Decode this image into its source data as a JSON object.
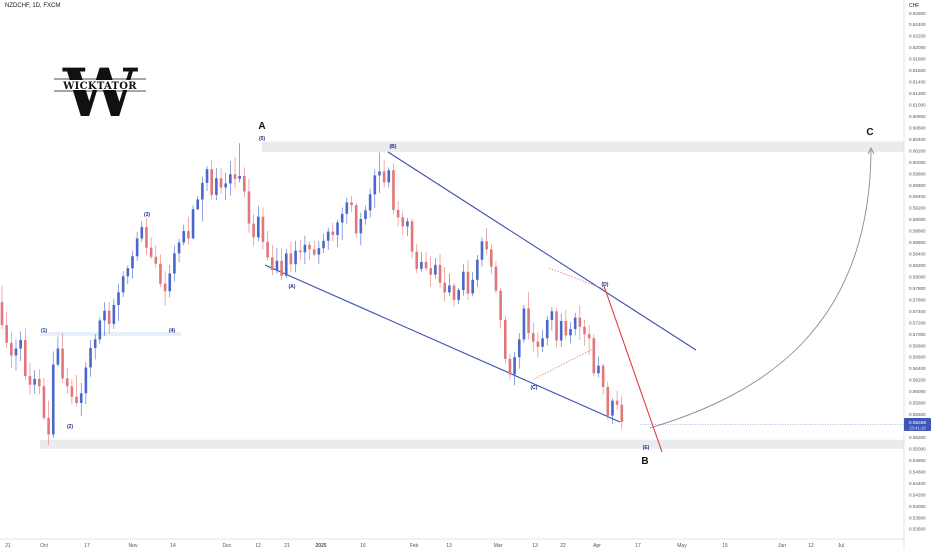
{
  "symbol_line": "NZDCHF, 1D, FXCM",
  "currency": "CHF",
  "logo": {
    "text": "WICKTATOR",
    "letter": "W"
  },
  "last_price": "0.55468",
  "countdown": "23:41:18",
  "colors": {
    "up": "#4a67c9",
    "down": "#e0777a",
    "channel": "#3d4fb5",
    "trend_red": "#e03c3c",
    "zone": "#e8eaed",
    "projection": "#8a8a8a",
    "price_tag": "#3f56b9"
  },
  "chart_data": {
    "type": "candlestick",
    "title": "NZDCHF, 1D, FXCM",
    "y_axis_label": "CHF",
    "ylim": [
      0.5355,
      0.6276
    ],
    "price_ticks": [
      "0.62600",
      "0.62400",
      "0.62200",
      "0.62000",
      "0.61800",
      "0.61600",
      "0.61400",
      "0.61200",
      "0.61000",
      "0.60800",
      "0.60600",
      "0.60400",
      "0.60200",
      "0.60000",
      "0.59800",
      "0.59600",
      "0.59400",
      "0.59200",
      "0.59000",
      "0.58800",
      "0.58600",
      "0.58400",
      "0.58200",
      "0.58000",
      "0.57800",
      "0.57600",
      "0.57400",
      "0.57200",
      "0.57000",
      "0.56800",
      "0.56600",
      "0.56400",
      "0.56200",
      "0.56000",
      "0.55800",
      "0.55600",
      "0.55400",
      "0.55200",
      "0.55000",
      "0.54800",
      "0.54600",
      "0.54400",
      "0.54200",
      "0.54000",
      "0.53800",
      "0.53600"
    ],
    "date_ticks": [
      "21",
      "Oct",
      "17",
      "Nov",
      "14",
      "Dec",
      "12",
      "21",
      "2025",
      "16",
      "Feb",
      "13",
      "Mar",
      "13",
      "22",
      "Apr",
      "17",
      "May",
      "15",
      "Jun",
      "12",
      "Jul"
    ],
    "wave_labels": [
      "(1)",
      "(2)",
      "(3)",
      "(4)",
      "(5)",
      "(A)",
      "(B)",
      "(C)",
      "(D)",
      "(E)"
    ],
    "major_labels": [
      "A",
      "B",
      "C"
    ],
    "candles": [
      [
        0.5756,
        0.5784,
        0.5709,
        0.5716
      ],
      [
        0.5716,
        0.5738,
        0.5676,
        0.5685
      ],
      [
        0.5685,
        0.5705,
        0.5641,
        0.5663
      ],
      [
        0.5663,
        0.5691,
        0.5637,
        0.5675
      ],
      [
        0.5675,
        0.5705,
        0.5653,
        0.569
      ],
      [
        0.569,
        0.571,
        0.562,
        0.5627
      ],
      [
        0.5627,
        0.565,
        0.5595,
        0.5612
      ],
      [
        0.5612,
        0.5637,
        0.5596,
        0.5622
      ],
      [
        0.5622,
        0.5639,
        0.5595,
        0.5609
      ],
      [
        0.5609,
        0.5624,
        0.555,
        0.5554
      ],
      [
        0.5554,
        0.5584,
        0.5507,
        0.5525
      ],
      [
        0.5525,
        0.567,
        0.5519,
        0.5647
      ],
      [
        0.5647,
        0.5696,
        0.5643,
        0.5675
      ],
      [
        0.5675,
        0.5702,
        0.5615,
        0.5623
      ],
      [
        0.5623,
        0.5641,
        0.5596,
        0.5609
      ],
      [
        0.5609,
        0.5622,
        0.5578,
        0.5591
      ],
      [
        0.5591,
        0.5629,
        0.5574,
        0.558
      ],
      [
        0.558,
        0.5615,
        0.5557,
        0.5597
      ],
      [
        0.5597,
        0.5651,
        0.5578,
        0.5642
      ],
      [
        0.5642,
        0.569,
        0.5626,
        0.5676
      ],
      [
        0.5676,
        0.57,
        0.5656,
        0.5691
      ],
      [
        0.5691,
        0.5729,
        0.5683,
        0.5724
      ],
      [
        0.5724,
        0.5756,
        0.5697,
        0.5741
      ],
      [
        0.5741,
        0.5756,
        0.5701,
        0.5718
      ],
      [
        0.5718,
        0.5762,
        0.5709,
        0.5751
      ],
      [
        0.5751,
        0.5788,
        0.5723,
        0.5773
      ],
      [
        0.5773,
        0.581,
        0.5765,
        0.5801
      ],
      [
        0.5801,
        0.582,
        0.5787,
        0.5815
      ],
      [
        0.5815,
        0.5846,
        0.5797,
        0.5836
      ],
      [
        0.5836,
        0.5878,
        0.5828,
        0.5867
      ],
      [
        0.5867,
        0.5898,
        0.5861,
        0.5887
      ],
      [
        0.5887,
        0.5903,
        0.5838,
        0.5851
      ],
      [
        0.5851,
        0.5869,
        0.5831,
        0.5835
      ],
      [
        0.5835,
        0.5855,
        0.5816,
        0.5823
      ],
      [
        0.5823,
        0.5839,
        0.5782,
        0.5788
      ],
      [
        0.5788,
        0.581,
        0.575,
        0.5775
      ],
      [
        0.5775,
        0.5821,
        0.5764,
        0.5806
      ],
      [
        0.5806,
        0.5855,
        0.5792,
        0.5841
      ],
      [
        0.5841,
        0.5866,
        0.5825,
        0.586
      ],
      [
        0.586,
        0.5891,
        0.5855,
        0.588
      ],
      [
        0.588,
        0.5905,
        0.5856,
        0.5867
      ],
      [
        0.5867,
        0.5925,
        0.5866,
        0.5918
      ],
      [
        0.5918,
        0.5941,
        0.5916,
        0.5935
      ],
      [
        0.5935,
        0.5975,
        0.5897,
        0.5964
      ],
      [
        0.5964,
        0.5993,
        0.595,
        0.5988
      ],
      [
        0.5988,
        0.6003,
        0.5935,
        0.5943
      ],
      [
        0.5943,
        0.599,
        0.5934,
        0.5972
      ],
      [
        0.5972,
        0.5989,
        0.5945,
        0.5956
      ],
      [
        0.5956,
        0.5982,
        0.5934,
        0.5963
      ],
      [
        0.5963,
        0.6002,
        0.5942,
        0.5979
      ],
      [
        0.5979,
        0.6009,
        0.5955,
        0.5971
      ],
      [
        0.5971,
        0.6033,
        0.5965,
        0.5976
      ],
      [
        0.5976,
        0.5991,
        0.5939,
        0.5949
      ],
      [
        0.5949,
        0.5971,
        0.5877,
        0.5893
      ],
      [
        0.5893,
        0.5909,
        0.5854,
        0.5869
      ],
      [
        0.5869,
        0.5924,
        0.5862,
        0.5905
      ],
      [
        0.5905,
        0.5921,
        0.5848,
        0.5861
      ],
      [
        0.5861,
        0.588,
        0.5829,
        0.5834
      ],
      [
        0.5834,
        0.5856,
        0.5803,
        0.5812
      ],
      [
        0.5812,
        0.585,
        0.5806,
        0.5828
      ],
      [
        0.5828,
        0.585,
        0.5794,
        0.5802
      ],
      [
        0.5802,
        0.5849,
        0.5798,
        0.5841
      ],
      [
        0.5841,
        0.5861,
        0.5808,
        0.5822
      ],
      [
        0.5822,
        0.5863,
        0.5808,
        0.5846
      ],
      [
        0.5846,
        0.5865,
        0.5829,
        0.5843
      ],
      [
        0.5843,
        0.5872,
        0.5822,
        0.5856
      ],
      [
        0.5856,
        0.5862,
        0.583,
        0.5848
      ],
      [
        0.5848,
        0.5863,
        0.5836,
        0.5839
      ],
      [
        0.5839,
        0.5863,
        0.5823,
        0.585
      ],
      [
        0.585,
        0.5876,
        0.5841,
        0.5863
      ],
      [
        0.5863,
        0.5886,
        0.5847,
        0.5879
      ],
      [
        0.5879,
        0.5894,
        0.5861,
        0.5873
      ],
      [
        0.5873,
        0.59,
        0.5852,
        0.5895
      ],
      [
        0.5895,
        0.5921,
        0.5864,
        0.591
      ],
      [
        0.591,
        0.5938,
        0.5893,
        0.593
      ],
      [
        0.593,
        0.5941,
        0.5913,
        0.5925
      ],
      [
        0.5925,
        0.5929,
        0.5869,
        0.5876
      ],
      [
        0.5876,
        0.5912,
        0.5855,
        0.5901
      ],
      [
        0.5901,
        0.5924,
        0.5891,
        0.5916
      ],
      [
        0.5916,
        0.5954,
        0.5903,
        0.5944
      ],
      [
        0.5944,
        0.5987,
        0.592,
        0.5977
      ],
      [
        0.5977,
        0.6017,
        0.5946,
        0.5984
      ],
      [
        0.5984,
        0.6004,
        0.5956,
        0.5965
      ],
      [
        0.5965,
        0.5991,
        0.5956,
        0.5986
      ],
      [
        0.5986,
        0.5998,
        0.591,
        0.5917
      ],
      [
        0.5917,
        0.5932,
        0.5889,
        0.5904
      ],
      [
        0.5904,
        0.5914,
        0.5873,
        0.5888
      ],
      [
        0.5888,
        0.5903,
        0.5871,
        0.5897
      ],
      [
        0.5897,
        0.5902,
        0.5833,
        0.5844
      ],
      [
        0.5844,
        0.5857,
        0.5807,
        0.5814
      ],
      [
        0.5814,
        0.5843,
        0.5809,
        0.5826
      ],
      [
        0.5826,
        0.5844,
        0.581,
        0.5815
      ],
      [
        0.5815,
        0.5836,
        0.5783,
        0.5804
      ],
      [
        0.5804,
        0.5833,
        0.5797,
        0.5821
      ],
      [
        0.5821,
        0.584,
        0.5781,
        0.579
      ],
      [
        0.579,
        0.5817,
        0.5757,
        0.5773
      ],
      [
        0.5773,
        0.5806,
        0.5767,
        0.5785
      ],
      [
        0.5785,
        0.5789,
        0.5749,
        0.576
      ],
      [
        0.576,
        0.5781,
        0.5753,
        0.5777
      ],
      [
        0.5777,
        0.5823,
        0.5767,
        0.5809
      ],
      [
        0.5809,
        0.5829,
        0.576,
        0.5771
      ],
      [
        0.5771,
        0.5808,
        0.5766,
        0.5795
      ],
      [
        0.5795,
        0.5838,
        0.5783,
        0.583
      ],
      [
        0.583,
        0.5869,
        0.5818,
        0.5862
      ],
      [
        0.5862,
        0.5886,
        0.584,
        0.5848
      ],
      [
        0.5848,
        0.5857,
        0.5805,
        0.5818
      ],
      [
        0.5818,
        0.5828,
        0.5771,
        0.5776
      ],
      [
        0.5776,
        0.5781,
        0.571,
        0.5725
      ],
      [
        0.5725,
        0.5733,
        0.5649,
        0.5657
      ],
      [
        0.5657,
        0.5665,
        0.5621,
        0.563
      ],
      [
        0.563,
        0.5669,
        0.5611,
        0.566
      ],
      [
        0.566,
        0.5702,
        0.564,
        0.5691
      ],
      [
        0.5691,
        0.5751,
        0.5685,
        0.5745
      ],
      [
        0.5745,
        0.5773,
        0.5691,
        0.5702
      ],
      [
        0.5702,
        0.572,
        0.567,
        0.5687
      ],
      [
        0.5687,
        0.5704,
        0.566,
        0.5678
      ],
      [
        0.5678,
        0.5707,
        0.5669,
        0.5693
      ],
      [
        0.5693,
        0.5732,
        0.568,
        0.5725
      ],
      [
        0.5725,
        0.5747,
        0.5706,
        0.574
      ],
      [
        0.574,
        0.5746,
        0.5677,
        0.5689
      ],
      [
        0.5689,
        0.5736,
        0.5678,
        0.5723
      ],
      [
        0.5723,
        0.5742,
        0.5691,
        0.5698
      ],
      [
        0.5698,
        0.5721,
        0.5684,
        0.5709
      ],
      [
        0.5709,
        0.5737,
        0.5698,
        0.5729
      ],
      [
        0.5729,
        0.575,
        0.569,
        0.5713
      ],
      [
        0.5713,
        0.5725,
        0.568,
        0.57
      ],
      [
        0.57,
        0.5716,
        0.5664,
        0.5693
      ],
      [
        0.5693,
        0.57,
        0.5627,
        0.5632
      ],
      [
        0.5632,
        0.5661,
        0.5625,
        0.5645
      ],
      [
        0.5645,
        0.5648,
        0.5595,
        0.5608
      ],
      [
        0.5608,
        0.5617,
        0.5551,
        0.5558
      ],
      [
        0.5558,
        0.5588,
        0.5543,
        0.5584
      ],
      [
        0.5584,
        0.5601,
        0.5568,
        0.5577
      ],
      [
        0.5577,
        0.5593,
        0.5535,
        0.5547
      ]
    ]
  },
  "volume_note": ""
}
